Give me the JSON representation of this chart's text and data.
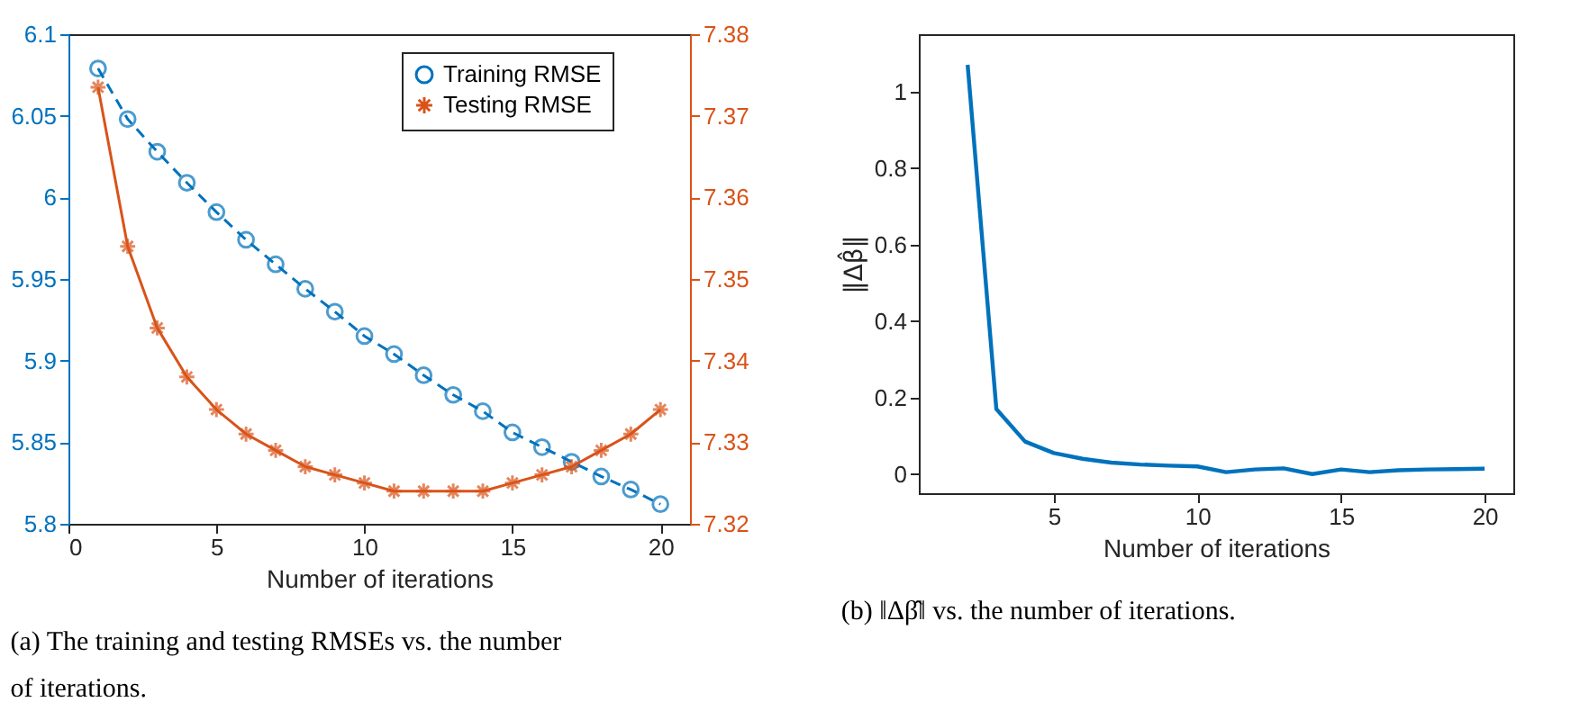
{
  "chart_data": [
    {
      "type": "line",
      "xlabel": "Number of iterations",
      "x": [
        1,
        2,
        3,
        4,
        5,
        6,
        7,
        8,
        9,
        10,
        11,
        12,
        13,
        14,
        15,
        16,
        17,
        18,
        19,
        20
      ],
      "xlim": [
        0,
        21
      ],
      "xticks": [
        0,
        5,
        10,
        15,
        20
      ],
      "ylim": [
        5.8,
        6.1
      ],
      "yticks": [
        5.8,
        5.85,
        5.9,
        5.95,
        6,
        6.05,
        6.1
      ],
      "y2lim": [
        7.32,
        7.38
      ],
      "y2ticks": [
        7.32,
        7.33,
        7.34,
        7.35,
        7.36,
        7.37,
        7.38
      ],
      "grid": false,
      "legend": "top right",
      "series": [
        {
          "name": "Training RMSE",
          "color": "#0072bd",
          "marker": "circle",
          "line_style": "dashed",
          "values": [
            6.079,
            6.048,
            6.028,
            6.009,
            5.991,
            5.974,
            5.959,
            5.944,
            5.93,
            5.915,
            5.904,
            5.891,
            5.879,
            5.869,
            5.856,
            5.847,
            5.838,
            5.829,
            5.821,
            5.812
          ]
        },
        {
          "name": "Testing RMSE",
          "color": "#d95319",
          "marker": "cross",
          "line_style": "solid",
          "axis": "y2",
          "values": [
            7.3735,
            7.354,
            7.344,
            7.338,
            7.334,
            7.331,
            7.329,
            7.327,
            7.326,
            7.325,
            7.324,
            7.324,
            7.324,
            7.324,
            7.325,
            7.326,
            7.327,
            7.329,
            7.331,
            7.334
          ]
        }
      ],
      "annotations": [
        "(a) The training and testing RMSEs vs. the number of iterations."
      ]
    },
    {
      "type": "line",
      "xlabel": "Number of iterations",
      "ylabel": "‖Δβ̂‖",
      "x": [
        2,
        3,
        4,
        5,
        6,
        7,
        8,
        9,
        10,
        11,
        12,
        13,
        14,
        15,
        16,
        17,
        18,
        19,
        20
      ],
      "xlim": [
        0.3,
        21
      ],
      "xticks": [
        5,
        10,
        15,
        20
      ],
      "ylim": [
        -0.05,
        1.15
      ],
      "yticks": [
        0,
        0.2,
        0.4,
        0.6,
        0.8,
        1
      ],
      "grid": false,
      "legend": false,
      "series": [
        {
          "color": "#0072bd",
          "marker": "none",
          "line_style": "solid",
          "values": [
            1.07,
            0.17,
            0.085,
            0.055,
            0.04,
            0.03,
            0.025,
            0.022,
            0.02,
            0.005,
            0.012,
            0.015,
            0.0,
            0.012,
            0.005,
            0.01,
            0.012,
            0.013,
            0.014
          ]
        }
      ],
      "annotations": [
        "(b) ‖Δβ̂‖ vs. the number of iterations."
      ]
    }
  ]
}
